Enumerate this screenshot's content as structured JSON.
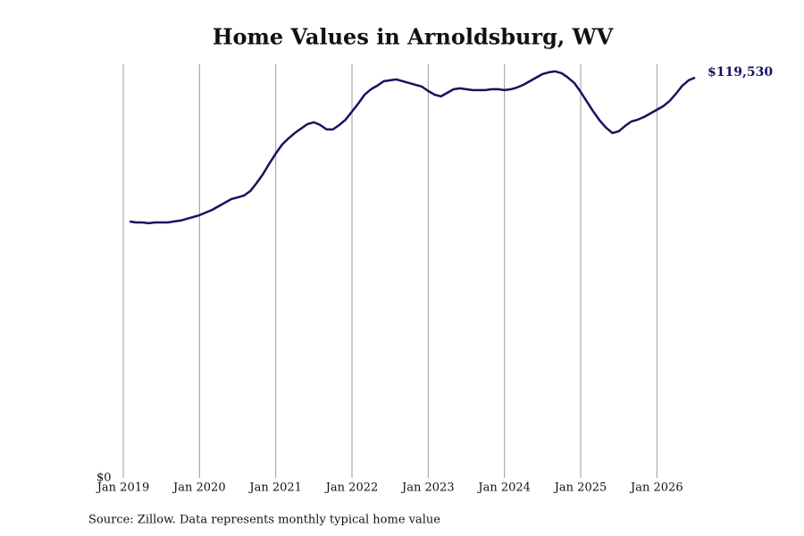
{
  "chart_data": {
    "type": "line",
    "title": "Home Values in Arnoldsburg, WV",
    "source": "Source: Zillow. Data represents monthly typical home value",
    "x": [
      "2019-02",
      "2019-03",
      "2019-04",
      "2019-05",
      "2019-06",
      "2019-07",
      "2019-08",
      "2019-09",
      "2019-10",
      "2019-11",
      "2019-12",
      "2020-01",
      "2020-02",
      "2020-03",
      "2020-04",
      "2020-05",
      "2020-06",
      "2020-07",
      "2020-08",
      "2020-09",
      "2020-10",
      "2020-11",
      "2020-12",
      "2021-01",
      "2021-02",
      "2021-03",
      "2021-04",
      "2021-05",
      "2021-06",
      "2021-07",
      "2021-08",
      "2021-09",
      "2021-10",
      "2021-11",
      "2021-12",
      "2022-01",
      "2022-02",
      "2022-03",
      "2022-04",
      "2022-05",
      "2022-06",
      "2022-07",
      "2022-08",
      "2022-09",
      "2022-10",
      "2022-11",
      "2022-12",
      "2023-01",
      "2023-02",
      "2023-03",
      "2023-04",
      "2023-05",
      "2023-06",
      "2023-07",
      "2023-08",
      "2023-09",
      "2023-10",
      "2023-11",
      "2023-12",
      "2024-01",
      "2024-02",
      "2024-03",
      "2024-04",
      "2024-05",
      "2024-06",
      "2024-07",
      "2024-08",
      "2024-09",
      "2024-10",
      "2024-11",
      "2024-12",
      "2025-01",
      "2025-02",
      "2025-03",
      "2025-04",
      "2025-05",
      "2025-06",
      "2025-07",
      "2025-08",
      "2025-09",
      "2025-10",
      "2025-11",
      "2025-12",
      "2026-01",
      "2026-02",
      "2026-03",
      "2026-04",
      "2026-05",
      "2026-06",
      "2026-07"
    ],
    "series": [
      {
        "name": "Home value",
        "color": "#14145e",
        "values": [
          76570,
          76300,
          76300,
          76040,
          76300,
          76300,
          76300,
          76570,
          76840,
          77370,
          77910,
          78440,
          79240,
          80040,
          81110,
          82170,
          83240,
          83780,
          84310,
          85640,
          88040,
          90710,
          93910,
          96850,
          99520,
          101380,
          102980,
          104320,
          105650,
          106190,
          105390,
          104050,
          104050,
          105390,
          106990,
          109390,
          111790,
          114460,
          116060,
          117130,
          118460,
          118730,
          118990,
          118460,
          117930,
          117390,
          116860,
          115530,
          114460,
          113920,
          114990,
          116060,
          116320,
          116060,
          115790,
          115790,
          115790,
          116060,
          116060,
          115790,
          116060,
          116590,
          117390,
          118460,
          119530,
          120590,
          121130,
          121390,
          120860,
          119530,
          117930,
          115260,
          112320,
          109390,
          106720,
          104590,
          102980,
          103520,
          105120,
          106450,
          106990,
          107790,
          108850,
          109920,
          110990,
          112590,
          114720,
          117130,
          118730,
          119530
        ],
        "value_labels": [
          null,
          null,
          null,
          null,
          null,
          null,
          null,
          null,
          null,
          null,
          null,
          null,
          null,
          null,
          null,
          null,
          null,
          null,
          null,
          null,
          null,
          null,
          null,
          null,
          null,
          null,
          null,
          null,
          null,
          null,
          null,
          null,
          null,
          null,
          null,
          null,
          null,
          null,
          null,
          null,
          null,
          null,
          null,
          null,
          null,
          null,
          null,
          null,
          null,
          null,
          null,
          null,
          null,
          null,
          null,
          null,
          null,
          null,
          null,
          null,
          null,
          null,
          null,
          null,
          null,
          null,
          null,
          null,
          null,
          null,
          null,
          null,
          null,
          null,
          null,
          null,
          null,
          null,
          null,
          null,
          null,
          null,
          null,
          null,
          null,
          null,
          null,
          null,
          null,
          "$119,530"
        ]
      }
    ],
    "xlim": [
      "2019-01",
      "2026-07"
    ],
    "xticks": [
      {
        "value": "2019-01",
        "label": "Jan 2019"
      },
      {
        "value": "2020-01",
        "label": "Jan 2020"
      },
      {
        "value": "2021-01",
        "label": "Jan 2021"
      },
      {
        "value": "2022-01",
        "label": "Jan 2022"
      },
      {
        "value": "2023-01",
        "label": "Jan 2023"
      },
      {
        "value": "2024-01",
        "label": "Jan 2024"
      },
      {
        "value": "2025-01",
        "label": "Jan 2025"
      },
      {
        "value": "2026-01",
        "label": "Jan 2026"
      }
    ],
    "ylim": [
      0,
      123500
    ],
    "yticks": [
      {
        "value": 0,
        "label": "$0"
      }
    ],
    "grid": "x"
  }
}
